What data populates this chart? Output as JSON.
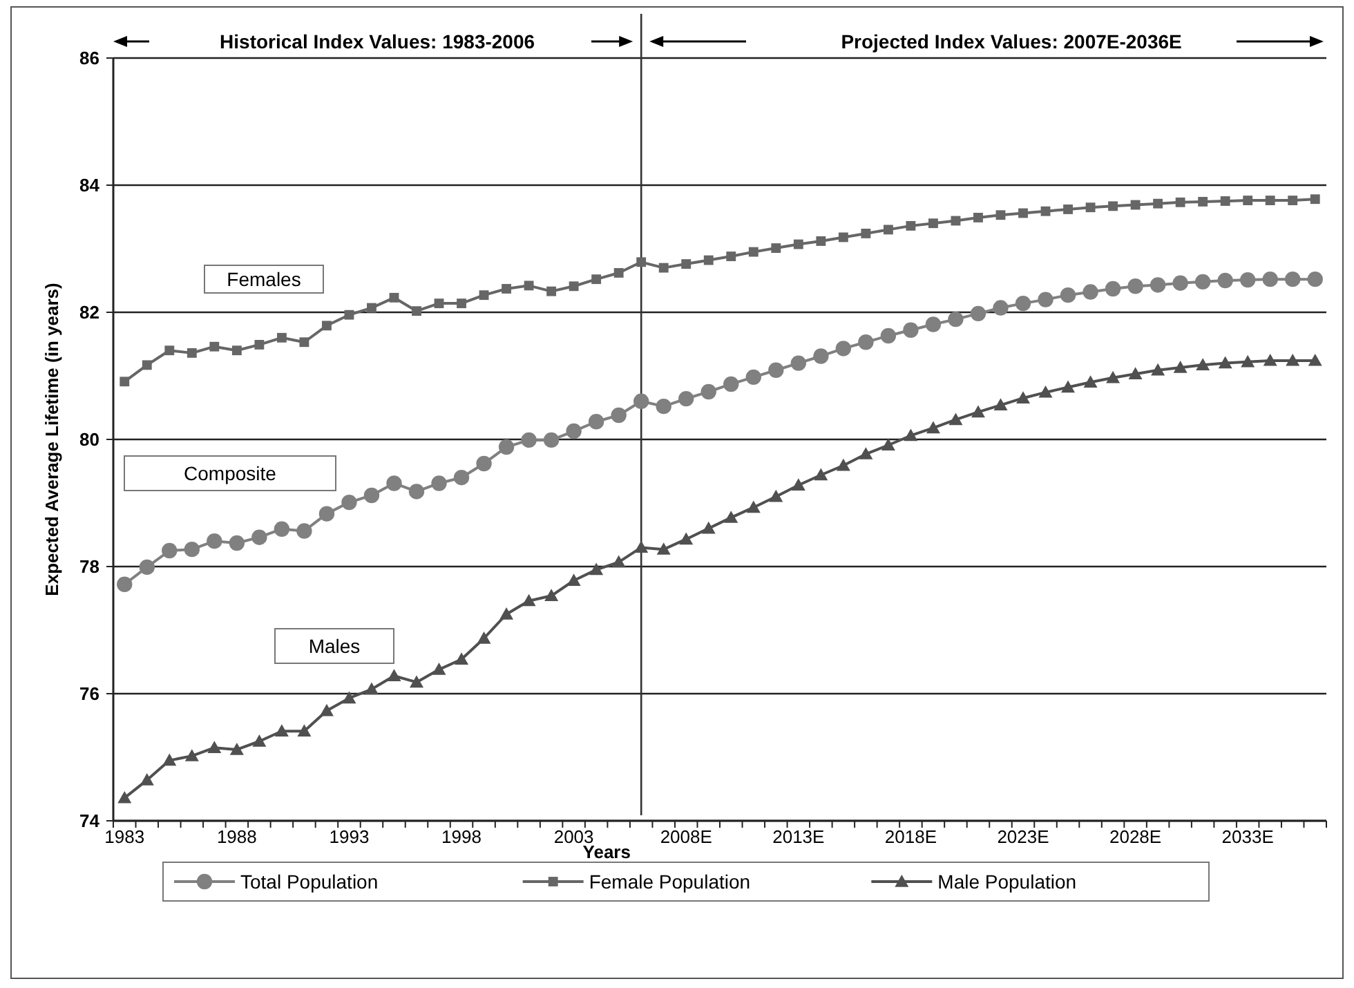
{
  "chart_data": {
    "type": "line",
    "xlabel": "Years",
    "ylabel": "Expected Average Lifetime (in years)",
    "categories": [
      "1983",
      null,
      null,
      null,
      null,
      "1988",
      null,
      null,
      null,
      null,
      "1993",
      null,
      null,
      null,
      null,
      "1998",
      null,
      null,
      null,
      null,
      "2003",
      null,
      null,
      null,
      null,
      "2008E",
      null,
      null,
      null,
      null,
      "2013E",
      null,
      null,
      null,
      null,
      "2018E",
      null,
      null,
      null,
      null,
      "2023E",
      null,
      null,
      null,
      null,
      "2028E",
      null,
      null,
      null,
      null,
      "2033E",
      null,
      null,
      null
    ],
    "ylim": [
      74,
      86
    ],
    "yticks": [
      74,
      76,
      78,
      80,
      82,
      84,
      86
    ],
    "grid": "y",
    "legend": "bottom",
    "line_style": "solid",
    "series": [
      {
        "name": "Total Population",
        "color": "#808080",
        "marker": "circle",
        "values": [
          77.72,
          77.99,
          78.25,
          78.27,
          78.4,
          78.37,
          78.46,
          78.59,
          78.56,
          78.83,
          79.01,
          79.12,
          79.31,
          79.18,
          79.31,
          79.4,
          79.62,
          79.88,
          79.99,
          79.99,
          80.13,
          80.28,
          80.38,
          80.6,
          80.52,
          80.64,
          80.75,
          80.87,
          80.98,
          81.09,
          81.2,
          81.31,
          81.43,
          81.53,
          81.63,
          81.72,
          81.81,
          81.89,
          81.98,
          82.07,
          82.14,
          82.2,
          82.27,
          82.32,
          82.37,
          82.41,
          82.43,
          82.46,
          82.48,
          82.5,
          82.51,
          82.52,
          82.52,
          82.52
        ]
      },
      {
        "name": "Female Population",
        "color": "#666666",
        "marker": "square",
        "values": [
          80.91,
          81.17,
          81.4,
          81.36,
          81.46,
          81.4,
          81.49,
          81.6,
          81.53,
          81.79,
          81.96,
          82.07,
          82.23,
          82.02,
          82.14,
          82.14,
          82.27,
          82.37,
          82.42,
          82.33,
          82.41,
          82.52,
          82.62,
          82.79,
          82.7,
          82.76,
          82.82,
          82.88,
          82.95,
          83.01,
          83.07,
          83.12,
          83.18,
          83.24,
          83.3,
          83.36,
          83.4,
          83.44,
          83.49,
          83.53,
          83.56,
          83.59,
          83.62,
          83.65,
          83.67,
          83.69,
          83.71,
          83.73,
          83.74,
          83.75,
          83.76,
          83.76,
          83.76,
          83.78
        ]
      },
      {
        "name": "Male Population",
        "color": "#505050",
        "marker": "triangle",
        "values": [
          74.36,
          74.64,
          74.95,
          75.02,
          75.15,
          75.12,
          75.25,
          75.41,
          75.41,
          75.73,
          75.93,
          76.07,
          76.28,
          76.18,
          76.38,
          76.54,
          76.87,
          77.25,
          77.46,
          77.54,
          77.78,
          77.95,
          78.07,
          78.3,
          78.27,
          78.43,
          78.6,
          78.77,
          78.93,
          79.1,
          79.28,
          79.44,
          79.59,
          79.77,
          79.91,
          80.06,
          80.18,
          80.31,
          80.43,
          80.54,
          80.65,
          80.74,
          80.82,
          80.9,
          80.97,
          81.03,
          81.09,
          81.13,
          81.17,
          81.2,
          81.22,
          81.24,
          81.24,
          81.24
        ]
      }
    ],
    "annotations": [
      "Historical Index Values: 1983-2006",
      "Projected Index Values: 2007E-2036E",
      "Females",
      "Composite",
      "Males"
    ]
  }
}
